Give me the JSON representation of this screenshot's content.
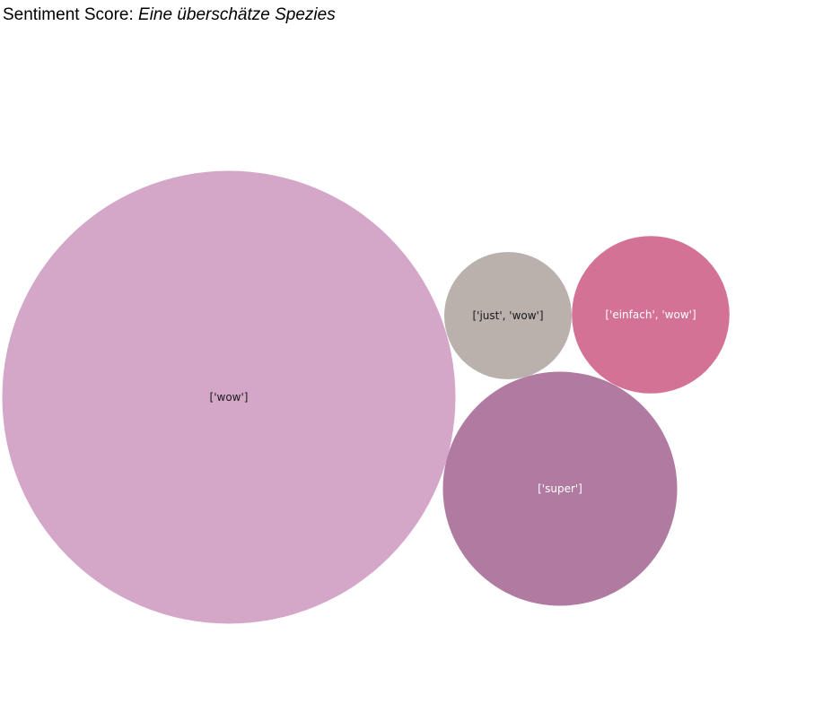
{
  "chart_title_prefix": "Sentiment Score:",
  "chart_title_subject": "Eine überschätze Spezies",
  "chart_data": {
    "type": "bubble",
    "title": "Sentiment Score: Eine überschätze Spezies",
    "bubbles": [
      {
        "label": "['wow']",
        "value": 100,
        "color": "#d4a6c8",
        "text_color": "#1a1a1a"
      },
      {
        "label": "['super']",
        "value": 26.7,
        "color": "#b07aa1",
        "text_color": "#ffffff"
      },
      {
        "label": "['einfach', 'wow']",
        "value": 12.1,
        "color": "#d37295",
        "text_color": "#ffffff"
      },
      {
        "label": "['just', 'wow']",
        "value": 7.9,
        "color": "#bab0ac",
        "text_color": "#1a1a1a"
      }
    ]
  }
}
